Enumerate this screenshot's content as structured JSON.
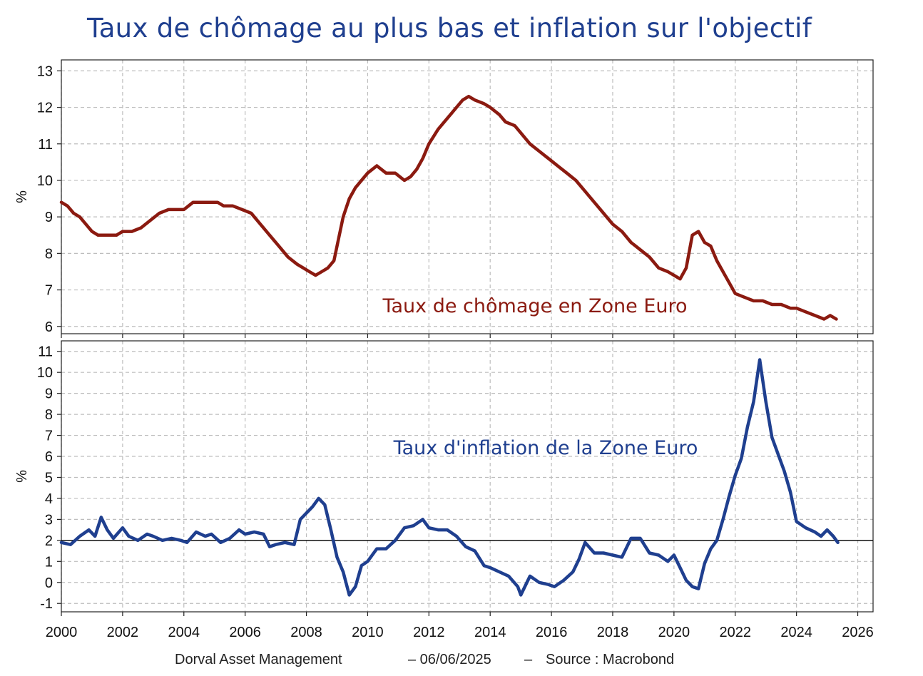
{
  "title": "Taux de chômage au plus bas et inflation sur l'objectif",
  "footer": {
    "author": "Dorval Asset Management",
    "date": "– 06/06/2025",
    "sep": "–",
    "source": "Source : Macrobond"
  },
  "colors": {
    "unemployment": "#8b1a10",
    "inflation": "#1f3f8f",
    "title": "#1f3f8f"
  },
  "chart_data": [
    {
      "type": "line",
      "ylabel": "%",
      "ylim": [
        5.8,
        13.3
      ],
      "yticks": [
        6,
        7,
        8,
        9,
        10,
        11,
        12,
        13
      ],
      "xlim": [
        2000,
        2026.5
      ],
      "xticks": [
        2000,
        2002,
        2004,
        2006,
        2008,
        2010,
        2012,
        2014,
        2016,
        2018,
        2020,
        2022,
        2024,
        2026
      ],
      "grid": true,
      "annotation": "Taux de chômage en Zone Euro",
      "series": [
        {
          "x": [
            2000.0,
            2000.2,
            2000.4,
            2000.6,
            2000.8,
            2001.0,
            2001.2,
            2001.5,
            2001.8,
            2002.0,
            2002.3,
            2002.6,
            2002.9,
            2003.2,
            2003.5,
            2003.8,
            2004.0,
            2004.3,
            2004.6,
            2004.9,
            2005.1,
            2005.3,
            2005.6,
            2005.9,
            2006.2,
            2006.5,
            2006.8,
            2007.1,
            2007.4,
            2007.7,
            2007.9,
            2008.1,
            2008.3,
            2008.5,
            2008.7,
            2008.9,
            2009.0,
            2009.2,
            2009.4,
            2009.6,
            2009.8,
            2010.0,
            2010.3,
            2010.6,
            2010.9,
            2011.2,
            2011.4,
            2011.6,
            2011.8,
            2012.0,
            2012.3,
            2012.6,
            2012.9,
            2013.1,
            2013.3,
            2013.5,
            2013.8,
            2014.0,
            2014.3,
            2014.5,
            2014.8,
            2015.0,
            2015.3,
            2015.6,
            2015.9,
            2016.2,
            2016.5,
            2016.8,
            2017.1,
            2017.4,
            2017.7,
            2018.0,
            2018.3,
            2018.6,
            2018.9,
            2019.2,
            2019.5,
            2019.8,
            2020.0,
            2020.2,
            2020.4,
            2020.6,
            2020.8,
            2021.0,
            2021.2,
            2021.4,
            2021.6,
            2021.8,
            2022.0,
            2022.3,
            2022.6,
            2022.9,
            2023.2,
            2023.5,
            2023.8,
            2024.0,
            2024.3,
            2024.6,
            2024.9,
            2025.1,
            2025.3
          ],
          "y": [
            9.4,
            9.3,
            9.1,
            9.0,
            8.8,
            8.6,
            8.5,
            8.5,
            8.5,
            8.6,
            8.6,
            8.7,
            8.9,
            9.1,
            9.2,
            9.2,
            9.2,
            9.4,
            9.4,
            9.4,
            9.4,
            9.3,
            9.3,
            9.2,
            9.1,
            8.8,
            8.5,
            8.2,
            7.9,
            7.7,
            7.6,
            7.5,
            7.4,
            7.5,
            7.6,
            7.8,
            8.2,
            9.0,
            9.5,
            9.8,
            10.0,
            10.2,
            10.4,
            10.2,
            10.2,
            10.0,
            10.1,
            10.3,
            10.6,
            11.0,
            11.4,
            11.7,
            12.0,
            12.2,
            12.3,
            12.2,
            12.1,
            12.0,
            11.8,
            11.6,
            11.5,
            11.3,
            11.0,
            10.8,
            10.6,
            10.4,
            10.2,
            10.0,
            9.7,
            9.4,
            9.1,
            8.8,
            8.6,
            8.3,
            8.1,
            7.9,
            7.6,
            7.5,
            7.4,
            7.3,
            7.6,
            8.5,
            8.6,
            8.3,
            8.2,
            7.8,
            7.5,
            7.2,
            6.9,
            6.8,
            6.7,
            6.7,
            6.6,
            6.6,
            6.5,
            6.5,
            6.4,
            6.3,
            6.2,
            6.3,
            6.2
          ],
          "color": "#8b1a10"
        }
      ]
    },
    {
      "type": "line",
      "ylabel": "%",
      "ylim": [
        -1.4,
        11.5
      ],
      "yticks": [
        -1,
        0,
        1,
        2,
        3,
        4,
        5,
        6,
        7,
        8,
        9,
        10,
        11
      ],
      "xlim": [
        2000,
        2026.5
      ],
      "xticks": [
        2000,
        2002,
        2004,
        2006,
        2008,
        2010,
        2012,
        2014,
        2016,
        2018,
        2020,
        2022,
        2024,
        2026
      ],
      "grid": true,
      "hline": 2,
      "annotation": "Taux d'inflation de la Zone Euro",
      "series": [
        {
          "x": [
            2000.0,
            2000.3,
            2000.6,
            2000.9,
            2001.1,
            2001.3,
            2001.5,
            2001.7,
            2002.0,
            2002.2,
            2002.5,
            2002.8,
            2003.0,
            2003.3,
            2003.6,
            2003.9,
            2004.1,
            2004.4,
            2004.7,
            2004.9,
            2005.2,
            2005.5,
            2005.8,
            2006.0,
            2006.3,
            2006.6,
            2006.8,
            2007.0,
            2007.3,
            2007.6,
            2007.8,
            2008.0,
            2008.2,
            2008.4,
            2008.6,
            2008.8,
            2009.0,
            2009.2,
            2009.4,
            2009.6,
            2009.8,
            2010.0,
            2010.3,
            2010.6,
            2010.9,
            2011.2,
            2011.5,
            2011.8,
            2012.0,
            2012.3,
            2012.6,
            2012.9,
            2013.2,
            2013.5,
            2013.8,
            2014.0,
            2014.3,
            2014.6,
            2014.9,
            2015.0,
            2015.3,
            2015.6,
            2015.9,
            2016.1,
            2016.4,
            2016.7,
            2016.9,
            2017.1,
            2017.4,
            2017.7,
            2018.0,
            2018.3,
            2018.6,
            2018.9,
            2019.2,
            2019.5,
            2019.8,
            2020.0,
            2020.2,
            2020.4,
            2020.6,
            2020.8,
            2021.0,
            2021.2,
            2021.4,
            2021.6,
            2021.8,
            2022.0,
            2022.2,
            2022.4,
            2022.6,
            2022.8,
            2023.0,
            2023.2,
            2023.4,
            2023.6,
            2023.8,
            2024.0,
            2024.3,
            2024.6,
            2024.8,
            2025.0,
            2025.2,
            2025.35
          ],
          "y": [
            1.9,
            1.8,
            2.2,
            2.5,
            2.2,
            3.1,
            2.5,
            2.1,
            2.6,
            2.2,
            2.0,
            2.3,
            2.2,
            2.0,
            2.1,
            2.0,
            1.9,
            2.4,
            2.2,
            2.3,
            1.9,
            2.1,
            2.5,
            2.3,
            2.4,
            2.3,
            1.7,
            1.8,
            1.9,
            1.8,
            3.0,
            3.3,
            3.6,
            4.0,
            3.7,
            2.5,
            1.2,
            0.5,
            -0.6,
            -0.2,
            0.8,
            1.0,
            1.6,
            1.6,
            2.0,
            2.6,
            2.7,
            3.0,
            2.6,
            2.5,
            2.5,
            2.2,
            1.7,
            1.5,
            0.8,
            0.7,
            0.5,
            0.3,
            -0.2,
            -0.6,
            0.3,
            0.0,
            -0.1,
            -0.2,
            0.1,
            0.5,
            1.1,
            1.9,
            1.4,
            1.4,
            1.3,
            1.2,
            2.1,
            2.1,
            1.4,
            1.3,
            1.0,
            1.3,
            0.7,
            0.1,
            -0.2,
            -0.3,
            0.9,
            1.6,
            2.0,
            3.0,
            4.1,
            5.1,
            5.9,
            7.4,
            8.6,
            10.6,
            8.6,
            6.9,
            6.1,
            5.3,
            4.3,
            2.9,
            2.6,
            2.4,
            2.2,
            2.5,
            2.2,
            1.9
          ],
          "color": "#1f3f8f"
        }
      ]
    }
  ]
}
